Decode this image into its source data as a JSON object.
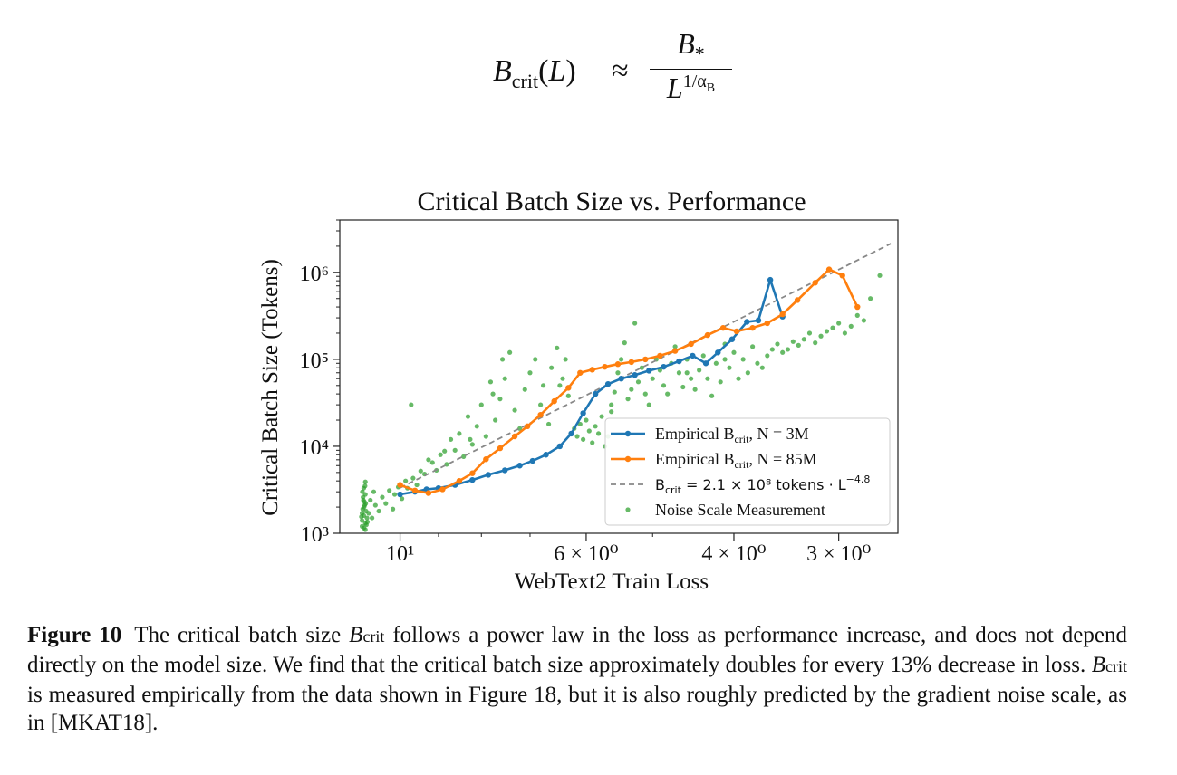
{
  "equation": {
    "lhs_symbol": "B",
    "lhs_subscript": "crit",
    "lhs_argument": "L",
    "relation": "≈",
    "numerator": "B",
    "numerator_subscript": "*",
    "denominator_base": "L",
    "denominator_exponent": "1/α",
    "denominator_exponent_subscript": "B"
  },
  "chart_data": {
    "type": "scatter",
    "title": "Critical Batch Size vs. Performance",
    "xlabel": "WebText2 Train Loss",
    "ylabel": "Critical Batch Size (Tokens)",
    "x_scale": "log",
    "x_reversed": true,
    "y_scale": "log",
    "xlim": [
      11.8,
      2.55
    ],
    "ylim": [
      1000,
      4000000
    ],
    "x_ticks": [
      {
        "value": 10,
        "label": "10¹"
      },
      {
        "value": 6,
        "label": "6 × 10⁰"
      },
      {
        "value": 4,
        "label": "4 × 10⁰"
      },
      {
        "value": 3,
        "label": "3 × 10⁰"
      }
    ],
    "y_ticks": [
      {
        "value": 1000,
        "label": "10³"
      },
      {
        "value": 10000,
        "label": "10⁴"
      },
      {
        "value": 100000,
        "label": "10⁵"
      },
      {
        "value": 1000000,
        "label": "10⁶"
      }
    ],
    "colors": {
      "n3m": "#1f77b4",
      "n85m": "#ff7f0e",
      "fit": "#888888",
      "noise": "#2ca02c"
    },
    "legend_position": "lower-right",
    "series": [
      {
        "name": "Empirical B_crit, N = 3M",
        "legend_label": "Empirical B",
        "legend_sub": "crit",
        "legend_suffix": ", N = 3M",
        "style": "line-marker",
        "points": [
          [
            10.0,
            2800
          ],
          [
            9.6,
            3000
          ],
          [
            9.3,
            3200
          ],
          [
            9.0,
            3300
          ],
          [
            8.6,
            3600
          ],
          [
            8.2,
            4100
          ],
          [
            7.85,
            4700
          ],
          [
            7.5,
            5300
          ],
          [
            7.2,
            6000
          ],
          [
            6.95,
            6800
          ],
          [
            6.7,
            8000
          ],
          [
            6.45,
            10000
          ],
          [
            6.25,
            14000
          ],
          [
            6.05,
            24000
          ],
          [
            5.85,
            40000
          ],
          [
            5.65,
            52000
          ],
          [
            5.45,
            60000
          ],
          [
            5.25,
            66000
          ],
          [
            5.05,
            74000
          ],
          [
            4.85,
            82000
          ],
          [
            4.65,
            95000
          ],
          [
            4.48,
            110000
          ],
          [
            4.32,
            90000
          ],
          [
            4.18,
            120000
          ],
          [
            4.02,
            170000
          ],
          [
            3.86,
            270000
          ],
          [
            3.74,
            280000
          ],
          [
            3.62,
            820000
          ],
          [
            3.5,
            310000
          ]
        ]
      },
      {
        "name": "Empirical B_crit, N = 85M",
        "legend_label": "Empirical B",
        "legend_sub": "crit",
        "legend_suffix": ", N = 85M",
        "style": "line-marker",
        "points": [
          [
            10.0,
            3600
          ],
          [
            9.6,
            3100
          ],
          [
            9.25,
            2900
          ],
          [
            8.9,
            3200
          ],
          [
            8.5,
            4000
          ],
          [
            8.2,
            4900
          ],
          [
            7.9,
            7100
          ],
          [
            7.6,
            9500
          ],
          [
            7.3,
            13000
          ],
          [
            7.05,
            17000
          ],
          [
            6.8,
            23000
          ],
          [
            6.55,
            33000
          ],
          [
            6.3,
            47000
          ],
          [
            6.1,
            70000
          ],
          [
            5.9,
            76000
          ],
          [
            5.7,
            82000
          ],
          [
            5.5,
            88000
          ],
          [
            5.3,
            93000
          ],
          [
            5.1,
            100000
          ],
          [
            4.9,
            110000
          ],
          [
            4.7,
            125000
          ],
          [
            4.5,
            150000
          ],
          [
            4.3,
            190000
          ],
          [
            4.12,
            230000
          ],
          [
            3.97,
            210000
          ],
          [
            3.8,
            230000
          ],
          [
            3.65,
            260000
          ],
          [
            3.5,
            330000
          ],
          [
            3.36,
            480000
          ],
          [
            3.2,
            760000
          ],
          [
            3.08,
            1080000
          ],
          [
            2.97,
            920000
          ],
          [
            2.85,
            400000
          ]
        ]
      },
      {
        "name": "B_crit = 2.1 × 10⁸ tokens · L^−4.8",
        "legend_label": "B",
        "legend_sub": "crit",
        "legend_suffix": " = 2.1 × 10⁸ tokens · L",
        "legend_sup": "−4.8",
        "style": "dashed",
        "coefficient": 210000000,
        "exponent": -4.8,
        "x_range": [
          10.0,
          2.6
        ]
      },
      {
        "name": "Noise Scale Measurement",
        "legend_label": "Noise Scale Measurement",
        "style": "scatter",
        "points": [
          [
            11.1,
            1200
          ],
          [
            11.1,
            1400
          ],
          [
            11.05,
            1600
          ],
          [
            11.08,
            1900
          ],
          [
            11.03,
            2300
          ],
          [
            11.0,
            2800
          ],
          [
            11.05,
            3300
          ],
          [
            11.0,
            3900
          ],
          [
            11.1,
            1700
          ],
          [
            11.02,
            2100
          ],
          [
            11.07,
            2600
          ],
          [
            11.0,
            1300
          ],
          [
            10.95,
            1500
          ],
          [
            10.98,
            1800
          ],
          [
            11.04,
            2000
          ],
          [
            11.06,
            2400
          ],
          [
            11.09,
            3000
          ],
          [
            11.01,
            3500
          ],
          [
            10.97,
            1250
          ],
          [
            11.12,
            1550
          ],
          [
            10.94,
            1350
          ],
          [
            11.0,
            1100
          ],
          [
            11.05,
            1150
          ],
          [
            10.99,
            2200
          ],
          [
            10.9,
            1700
          ],
          [
            10.85,
            2400
          ],
          [
            10.8,
            1500
          ],
          [
            10.75,
            3000
          ],
          [
            10.7,
            2100
          ],
          [
            10.6,
            1800
          ],
          [
            10.5,
            2600
          ],
          [
            10.4,
            2200
          ],
          [
            10.3,
            3100
          ],
          [
            10.2,
            1900
          ],
          [
            10.15,
            2800
          ],
          [
            10.05,
            3400
          ],
          [
            9.95,
            2500
          ],
          [
            9.85,
            4000
          ],
          [
            9.8,
            3300
          ],
          [
            9.7,
            30000
          ],
          [
            9.65,
            4300
          ],
          [
            9.55,
            3600
          ],
          [
            9.45,
            5200
          ],
          [
            9.35,
            4800
          ],
          [
            9.25,
            7000
          ],
          [
            9.15,
            6500
          ],
          [
            9.05,
            5300
          ],
          [
            8.95,
            8000
          ],
          [
            8.85,
            8800
          ],
          [
            8.8,
            6200
          ],
          [
            8.7,
            12000
          ],
          [
            8.6,
            9000
          ],
          [
            8.5,
            14000
          ],
          [
            8.4,
            7600
          ],
          [
            8.3,
            22000
          ],
          [
            8.2,
            10500
          ],
          [
            8.1,
            17000
          ],
          [
            8.0,
            30000
          ],
          [
            7.9,
            13000
          ],
          [
            7.8,
            55000
          ],
          [
            7.75,
            40000
          ],
          [
            7.7,
            20000
          ],
          [
            7.6,
            35000
          ],
          [
            7.5,
            60000
          ],
          [
            7.4,
            120000
          ],
          [
            7.3,
            26000
          ],
          [
            7.2,
            16000
          ],
          [
            7.1,
            45000
          ],
          [
            7.0,
            70000
          ],
          [
            6.9,
            100000
          ],
          [
            6.8,
            30000
          ],
          [
            6.75,
            50000
          ],
          [
            6.65,
            18000
          ],
          [
            6.6,
            80000
          ],
          [
            6.5,
            135000
          ],
          [
            6.4,
            60000
          ],
          [
            6.35,
            100000
          ],
          [
            6.3,
            38000
          ],
          [
            6.2,
            16000
          ],
          [
            6.15,
            13000
          ],
          [
            6.1,
            18000
          ],
          [
            6.05,
            12000
          ],
          [
            6.0,
            20000
          ],
          [
            5.95,
            15000
          ],
          [
            5.9,
            11000
          ],
          [
            5.85,
            17000
          ],
          [
            5.8,
            14000
          ],
          [
            5.75,
            22000
          ],
          [
            5.7,
            10000
          ],
          [
            5.65,
            13000
          ],
          [
            5.6,
            25000
          ],
          [
            5.55,
            42000
          ],
          [
            5.5,
            70000
          ],
          [
            5.45,
            100000
          ],
          [
            5.4,
            155000
          ],
          [
            5.35,
            35000
          ],
          [
            5.3,
            45000
          ],
          [
            5.25,
            260000
          ],
          [
            5.2,
            55000
          ],
          [
            5.15,
            80000
          ],
          [
            5.1,
            40000
          ],
          [
            5.05,
            30000
          ],
          [
            5.0,
            60000
          ],
          [
            4.95,
            100000
          ],
          [
            4.9,
            75000
          ],
          [
            4.85,
            50000
          ],
          [
            4.8,
            40000
          ],
          [
            4.75,
            90000
          ],
          [
            4.7,
            140000
          ],
          [
            4.65,
            70000
          ],
          [
            4.6,
            48000
          ],
          [
            4.55,
            100000
          ],
          [
            4.5,
            60000
          ],
          [
            4.45,
            45000
          ],
          [
            4.4,
            75000
          ],
          [
            4.35,
            110000
          ],
          [
            4.3,
            60000
          ],
          [
            4.25,
            38000
          ],
          [
            4.2,
            90000
          ],
          [
            4.15,
            55000
          ],
          [
            4.1,
            150000
          ],
          [
            4.05,
            80000
          ],
          [
            4.0,
            120000
          ],
          [
            3.95,
            60000
          ],
          [
            3.9,
            100000
          ],
          [
            3.85,
            70000
          ],
          [
            3.8,
            140000
          ],
          [
            3.75,
            90000
          ],
          [
            3.7,
            80000
          ],
          [
            3.65,
            110000
          ],
          [
            3.6,
            130000
          ],
          [
            3.55,
            150000
          ],
          [
            3.5,
            120000
          ],
          [
            3.45,
            130000
          ],
          [
            3.4,
            160000
          ],
          [
            3.35,
            145000
          ],
          [
            3.3,
            170000
          ],
          [
            3.25,
            200000
          ],
          [
            3.2,
            155000
          ],
          [
            3.15,
            185000
          ],
          [
            3.1,
            210000
          ],
          [
            3.05,
            230000
          ],
          [
            3.0,
            260000
          ],
          [
            2.95,
            200000
          ],
          [
            2.9,
            240000
          ],
          [
            2.85,
            320000
          ],
          [
            2.8,
            280000
          ],
          [
            2.75,
            500000
          ],
          [
            2.68,
            920000
          ],
          [
            4.55,
            70000
          ],
          [
            4.1,
            100000
          ],
          [
            5.6,
            30000
          ],
          [
            6.45,
            50000
          ],
          [
            7.55,
            100000
          ],
          [
            8.25,
            12000
          ]
        ]
      }
    ]
  },
  "caption": {
    "label": "Figure 10",
    "text_1": "The critical batch size ",
    "symbol_1": "B",
    "sub_1": "crit",
    "text_2": " follows a power law in the loss as performance increase, and does not depend directly on the model size. We find that the critical batch size approximately doubles for every 13% decrease in loss. ",
    "symbol_2": "B",
    "sub_2": "crit",
    "text_3": " is measured empirically from the data shown in Figure 18, but it is also roughly predicted by the gradient noise scale, as in [MKAT18]."
  }
}
